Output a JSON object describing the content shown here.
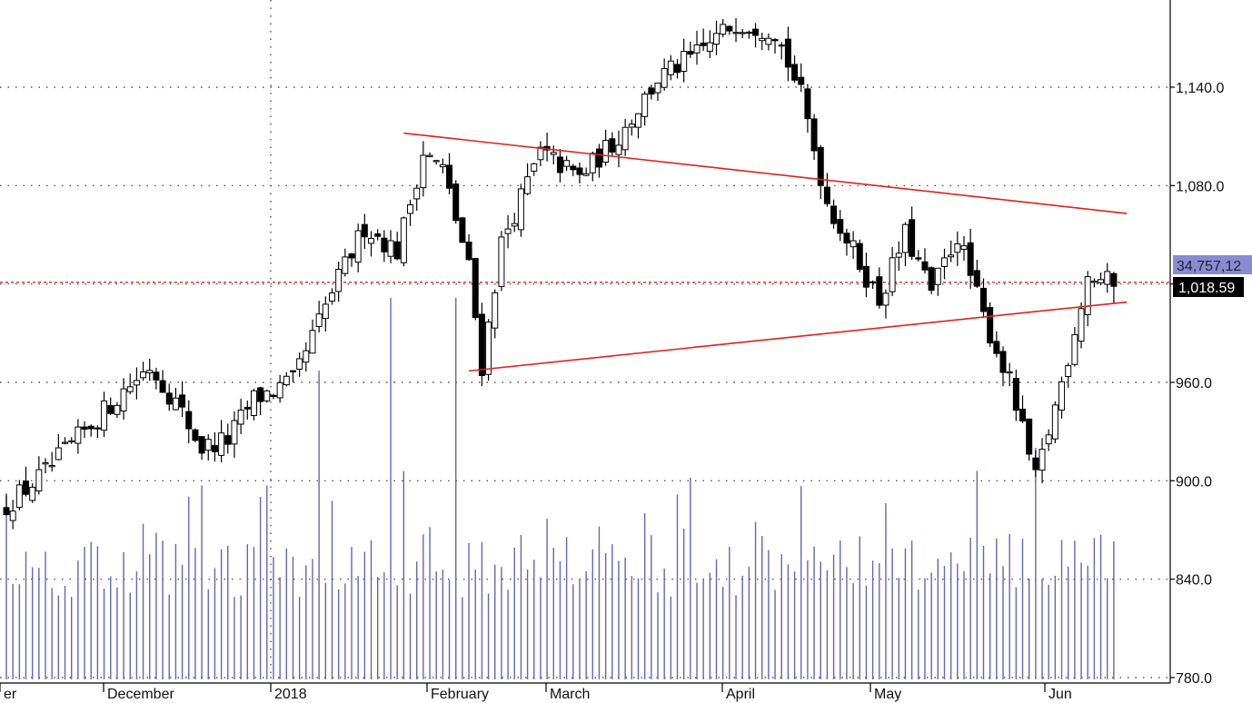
{
  "chart_data": {
    "type": "candlestick",
    "title": "",
    "xlabel": "",
    "ylabel": "",
    "ylim": [
      780,
      1190
    ],
    "y_ticks": [
      "780.0",
      "840.0",
      "900.0",
      "960.0",
      "1,020.0",
      "1,080.0",
      "1,140.0"
    ],
    "y_tick_values": [
      780,
      840,
      900,
      960,
      1020,
      1080,
      1140
    ],
    "grid": true,
    "x_labels": [
      "er",
      "December",
      "2018",
      "February",
      "March",
      "April",
      "May",
      "Jun"
    ],
    "last_price_label": "1,018.59",
    "last_price": 1018.59,
    "volume_label": "34,757,12",
    "reference_level": 1021,
    "trendlines": [
      {
        "name": "",
        "from": {
          "bar": 61,
          "value": 1112
        },
        "to": {
          "bar": 172,
          "value": 1063
        }
      },
      {
        "name": "",
        "from": {
          "bar": 71,
          "value": 967
        },
        "to": {
          "bar": 172,
          "value": 1009
        }
      }
    ],
    "colors": {
      "up_body": "#ffffff",
      "down_body": "#000000",
      "volume": "#6666aa",
      "trendline": "#e02020",
      "reference": "#e02020",
      "grid": "#333333",
      "price_badge_bg": "#000000",
      "price_badge_text": "#ffffff",
      "volume_badge_bg": "#8a8ad0",
      "volume_badge_text": "#202040"
    }
  }
}
